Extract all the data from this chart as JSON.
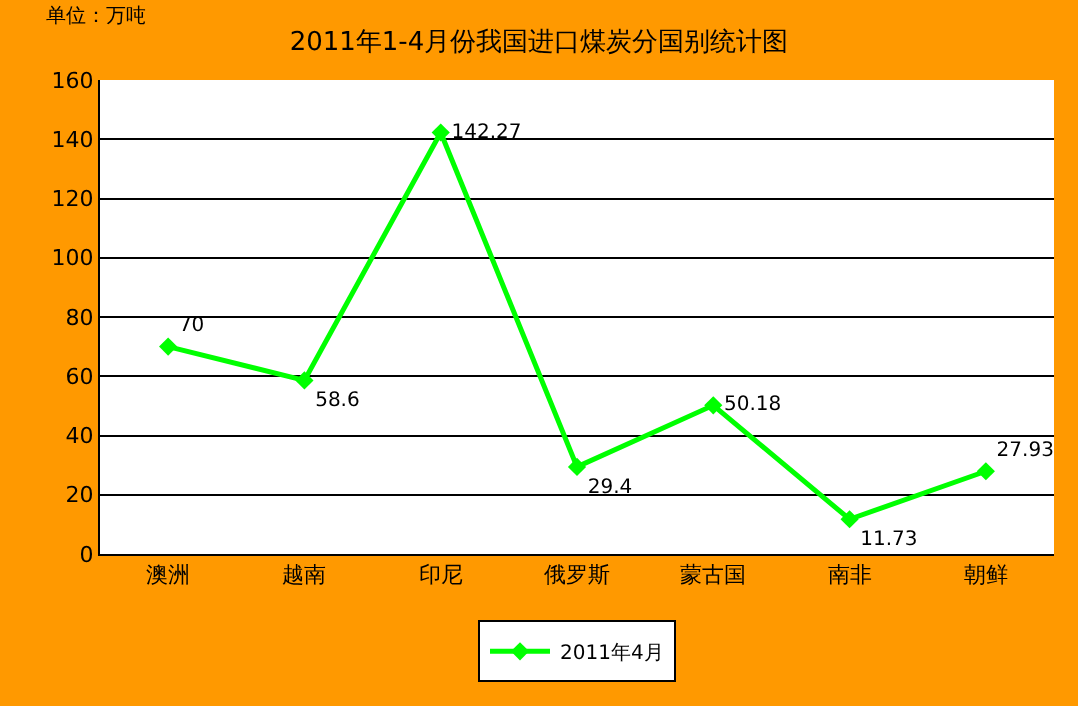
{
  "chart_data": {
    "type": "line",
    "title": "2011年1-4月份我国进口煤炭分国别统计图",
    "annotations": [
      "单位：万吨"
    ],
    "categories": [
      "澳洲",
      "越南",
      "印尼",
      "俄罗斯",
      "蒙古国",
      "南非",
      "朝鲜"
    ],
    "series": [
      {
        "name": "2011年4月",
        "color": "#00ff00",
        "values": [
          70,
          58.6,
          142.27,
          29.4,
          50.18,
          11.73,
          27.93
        ]
      }
    ],
    "ylim": [
      0,
      160
    ],
    "yticks": [
      0,
      20,
      40,
      60,
      80,
      100,
      120,
      140,
      160
    ],
    "grid": "y",
    "legend": "bottom",
    "marker": "diamond",
    "line_style": "solid",
    "data_labels": true
  }
}
